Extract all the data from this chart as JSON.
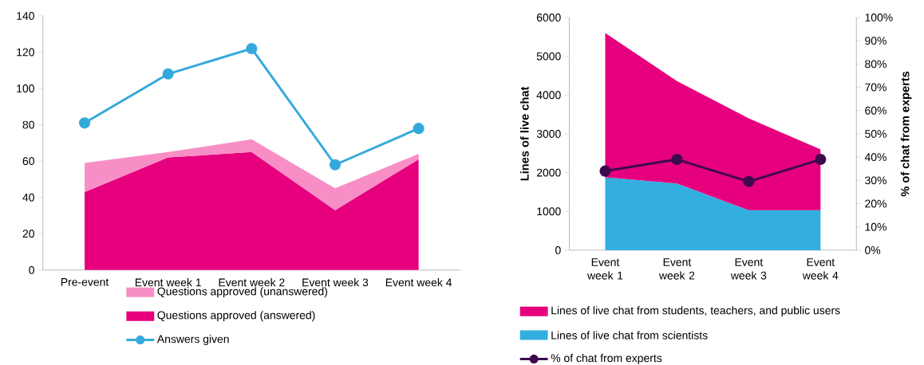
{
  "chart_data": [
    {
      "type": "area",
      "stacked": true,
      "categories": [
        "Pre-event",
        "Event week 1",
        "Event week 2",
        "Event week 3",
        "Event week 4"
      ],
      "series": [
        {
          "name": "Questions approved (answered)",
          "color": "#e6007e",
          "values": [
            43,
            62,
            65,
            33,
            61
          ]
        },
        {
          "name": "Questions approved (unanswered)",
          "color": "#f78fc6",
          "values": [
            16,
            3,
            7,
            12,
            3
          ]
        },
        {
          "name": "Answers given",
          "type": "line",
          "color": "#33a9dc",
          "marker": "circle",
          "values": [
            81,
            108,
            122,
            58,
            78
          ]
        }
      ],
      "ylim": [
        0,
        140
      ],
      "yticks": [
        0,
        20,
        40,
        60,
        80,
        100,
        120,
        140
      ],
      "legend": "bottom"
    },
    {
      "type": "area",
      "stacked": true,
      "categories": [
        "Event week 1",
        "Event week 2",
        "Event week 3",
        "Event week 4"
      ],
      "ylabel": "Lines of live chat",
      "y2label": "% of chat from experts",
      "series": [
        {
          "name": "Lines of live chat from scientists",
          "color": "#33aee0",
          "values": [
            1880,
            1720,
            1030,
            1030
          ]
        },
        {
          "name": "Lines of live chat from students, teachers, and public users",
          "color": "#e6007e",
          "values": [
            3720,
            2640,
            2370,
            1570
          ]
        },
        {
          "name": "% of chat from experts",
          "type": "line",
          "axis": "y2",
          "color": "#3d0a4f",
          "marker": "circle",
          "values": [
            34,
            39,
            29.5,
            39
          ]
        }
      ],
      "ylim": [
        0,
        6000
      ],
      "yticks": [
        0,
        1000,
        2000,
        3000,
        4000,
        5000,
        6000
      ],
      "y2lim": [
        0,
        100
      ],
      "y2ticks": [
        {
          "value": 0,
          "label": "0%"
        },
        {
          "value": 10,
          "label": "10%"
        },
        {
          "value": 20,
          "label": "20%"
        },
        {
          "value": 30,
          "label": "30%"
        },
        {
          "value": 40,
          "label": "40%"
        },
        {
          "value": 50,
          "label": "50%"
        },
        {
          "value": 60,
          "label": "60%"
        },
        {
          "value": 70,
          "label": "70%"
        },
        {
          "value": 80,
          "label": "80%"
        },
        {
          "value": 90,
          "label": "90%"
        },
        {
          "value": 100,
          "label": "100%"
        }
      ],
      "legend": "bottom"
    }
  ]
}
